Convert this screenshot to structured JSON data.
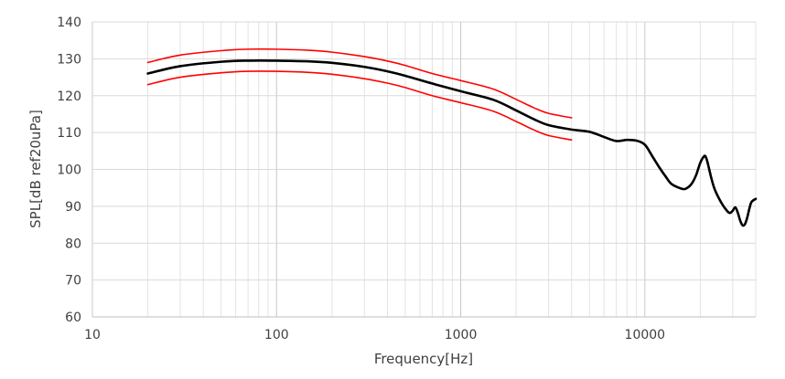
{
  "chart_data": {
    "type": "line",
    "title": "",
    "xlabel": "Frequency[Hz]",
    "ylabel": "SPL[dB ref20uPa]",
    "x_scale": "log",
    "xlim": [
      10,
      40000
    ],
    "ylim": [
      60,
      140
    ],
    "x_ticks": [
      10,
      100,
      1000,
      10000
    ],
    "y_ticks": [
      60,
      70,
      80,
      90,
      100,
      110,
      120,
      130,
      140
    ],
    "x_tick_labels": [
      "10",
      "100",
      "1000",
      "10000"
    ],
    "y_tick_labels": [
      "60",
      "70",
      "80",
      "90",
      "100",
      "110",
      "120",
      "130",
      "140"
    ],
    "grid": true,
    "legend": "none",
    "series": [
      {
        "color": "#000000",
        "x": [
          20,
          30,
          50,
          70,
          100,
          150,
          200,
          300,
          400,
          500,
          700,
          1000,
          1500,
          2000,
          2500,
          3000,
          4000,
          5000,
          6000,
          7000,
          8000,
          9000,
          10000,
          11000,
          12000,
          13000,
          14000,
          16000,
          17000,
          18000,
          19000,
          20000,
          21000,
          21500,
          22000,
          23000,
          24000,
          26000,
          28000,
          29000,
          30000,
          31000,
          32000,
          33000,
          34000,
          35000,
          36000,
          37000,
          38000,
          40000
        ],
        "y": [
          126,
          128,
          129.2,
          129.5,
          129.5,
          129.3,
          128.9,
          127.8,
          126.6,
          125.4,
          123.3,
          121.2,
          118.9,
          116,
          113.6,
          112,
          110.8,
          110.2,
          108.8,
          107.7,
          108,
          107.8,
          106.7,
          103.5,
          100.5,
          98,
          96,
          94.7,
          95,
          96.2,
          98.5,
          101.8,
          103.6,
          103.2,
          101.5,
          97.5,
          94.5,
          91,
          88.7,
          88.2,
          88.8,
          89.7,
          88.2,
          86,
          84.8,
          85.2,
          87,
          89.5,
          91.2,
          92
        ]
      },
      {
        "color": "#ff0000",
        "x": [
          20,
          30,
          50,
          70,
          100,
          150,
          200,
          300,
          400,
          500,
          700,
          1000,
          1500,
          2000,
          2500,
          3000,
          4000
        ],
        "y": [
          129,
          131,
          132.2,
          132.6,
          132.6,
          132.3,
          131.8,
          130.6,
          129.4,
          128.2,
          126,
          124.1,
          121.8,
          119,
          116.7,
          115.2,
          114
        ]
      },
      {
        "color": "#ff0000",
        "x": [
          20,
          30,
          50,
          70,
          100,
          150,
          200,
          300,
          400,
          500,
          700,
          1000,
          1500,
          2000,
          2500,
          3000,
          4000
        ],
        "y": [
          123,
          125,
          126.2,
          126.6,
          126.6,
          126.3,
          125.8,
          124.6,
          123.4,
          122.2,
          120,
          118.1,
          115.8,
          113,
          110.7,
          109.2,
          108
        ]
      }
    ]
  }
}
